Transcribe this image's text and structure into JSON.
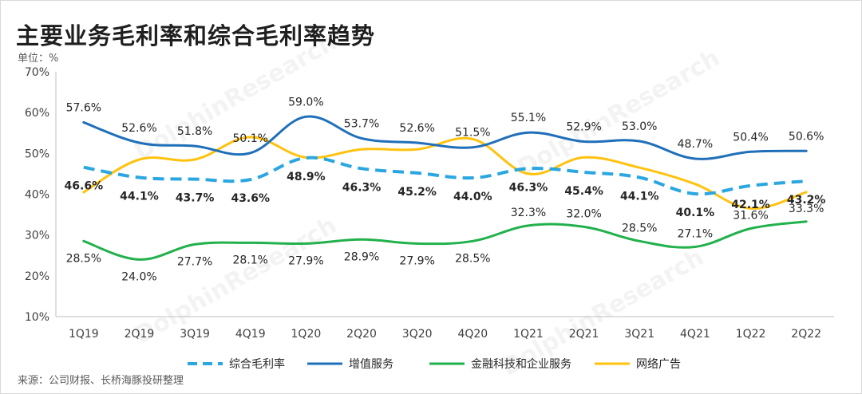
{
  "title": "主要业务毛利率和综合毛利率趋势",
  "unit_label": "单位：%",
  "source": "来源：公司财报、长桥海豚投研整理",
  "watermark": "DolphinResearch",
  "colors": {
    "综合毛利率": "#2aa7e1",
    "增值服务": "#1f6fb9",
    "金融科技和企业服务": "#22b14c",
    "网络广告": "#ffc20e"
  },
  "chart_data": {
    "type": "line",
    "categories": [
      "1Q19",
      "2Q19",
      "3Q19",
      "4Q19",
      "1Q20",
      "2Q20",
      "3Q20",
      "4Q20",
      "1Q21",
      "2Q21",
      "3Q21",
      "4Q21",
      "1Q22",
      "2Q22"
    ],
    "ylim": [
      10,
      70
    ],
    "yticks": [
      "10%",
      "20%",
      "30%",
      "40%",
      "50%",
      "60%",
      "70%"
    ],
    "grid": false,
    "legend_position": "bottom",
    "series": [
      {
        "name": "综合毛利率",
        "style": "dashed",
        "values": [
          46.6,
          44.1,
          43.7,
          43.6,
          48.9,
          46.3,
          45.2,
          44.0,
          46.3,
          45.4,
          44.1,
          40.1,
          42.1,
          43.2
        ],
        "labels": [
          "46.6%",
          "44.1%",
          "43.7%",
          "43.6%",
          "48.9%",
          "46.3%",
          "45.2%",
          "44.0%",
          "46.3%",
          "45.4%",
          "44.1%",
          "40.1%",
          "42.1%",
          "43.2%"
        ]
      },
      {
        "name": "增值服务",
        "style": "solid",
        "values": [
          57.6,
          52.6,
          51.8,
          50.1,
          59.0,
          53.7,
          52.6,
          51.5,
          55.1,
          52.9,
          53.0,
          48.7,
          50.4,
          50.6
        ],
        "labels": [
          "57.6%",
          "52.6%",
          "51.8%",
          "50.1%",
          "59.0%",
          "53.7%",
          "52.6%",
          "51.5%",
          "55.1%",
          "52.9%",
          "53.0%",
          "48.7%",
          "50.4%",
          "50.6%"
        ]
      },
      {
        "name": "金融科技和企业服务",
        "style": "solid",
        "values": [
          28.5,
          24.0,
          27.7,
          28.1,
          27.9,
          28.9,
          27.9,
          28.5,
          32.3,
          32.0,
          28.5,
          27.1,
          31.6,
          33.3
        ],
        "labels": [
          "28.5%",
          "24.0%",
          "27.7%",
          "28.1%",
          "27.9%",
          "28.9%",
          "27.9%",
          "28.5%",
          "32.3%",
          "32.0%",
          "28.5%",
          "27.1%",
          "31.6%",
          "33.3%"
        ]
      },
      {
        "name": "网络广告",
        "style": "solid",
        "values": [
          40.5,
          48.5,
          48.5,
          54.0,
          49.0,
          51.0,
          51.0,
          53.5,
          45.0,
          49.0,
          46.5,
          42.5,
          36.5,
          40.5
        ],
        "labels": []
      }
    ]
  }
}
